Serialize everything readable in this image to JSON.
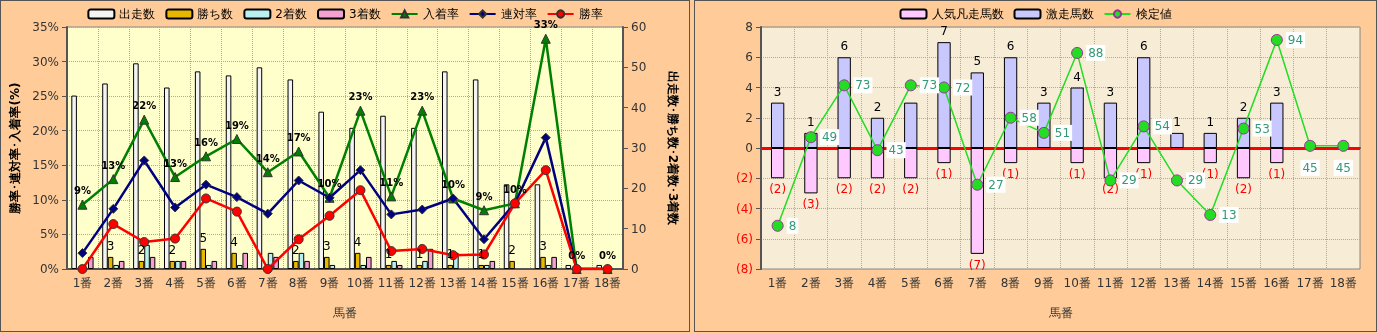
{
  "chart_data": [
    {
      "type": "bar",
      "xlabel": "馬番",
      "ylabel": "勝率･連対率･入着率(%)",
      "y2label": "出走数･勝ち数･2着数･3着数",
      "categories": [
        "1番",
        "2番",
        "3番",
        "4番",
        "5番",
        "6番",
        "7番",
        "8番",
        "9番",
        "10番",
        "11番",
        "12番",
        "13番",
        "14番",
        "15番",
        "16番",
        "17番",
        "18番"
      ],
      "ylim": [
        0,
        35
      ],
      "yticks": [
        {
          "value": 0,
          "label": "0%"
        },
        {
          "value": 5,
          "label": "5%"
        },
        {
          "value": 10,
          "label": "10%"
        },
        {
          "value": 15,
          "label": "15%"
        },
        {
          "value": 20,
          "label": "20%"
        },
        {
          "value": 25,
          "label": "25%"
        },
        {
          "value": 30,
          "label": "30%"
        },
        {
          "value": 35,
          "label": "35%"
        }
      ],
      "y2lim": [
        0,
        60
      ],
      "y2ticks": [
        0,
        10,
        20,
        30,
        40,
        50,
        60
      ],
      "grid": true,
      "legend": "top",
      "series": [
        {
          "name": "出走数",
          "axis": "y2",
          "color": "#f4f4f4",
          "values": [
            43,
            46,
            51,
            45,
            49,
            48,
            50,
            47,
            39,
            35,
            38,
            35,
            49,
            47,
            21,
            21,
            1,
            1
          ]
        },
        {
          "name": "勝ち数",
          "axis": "y2",
          "color": "#e8b800",
          "values": [
            0,
            3,
            2,
            2,
            5,
            4,
            0,
            2,
            3,
            4,
            1,
            1,
            1,
            1,
            2,
            3,
            0,
            0
          ],
          "value_labels": [
            null,
            "3",
            "2",
            "2",
            "5",
            "4",
            null,
            "2",
            "3",
            "4",
            "1",
            "1",
            "1",
            "1",
            "2",
            "3",
            null,
            null
          ]
        },
        {
          "name": "2着数",
          "axis": "y2",
          "color": "#b8f0f0",
          "values": [
            null,
            1,
            6,
            2,
            1,
            1,
            4,
            4,
            1,
            1,
            2,
            2,
            4,
            1,
            0,
            1,
            0,
            0
          ]
        },
        {
          "name": "3着数",
          "axis": "y2",
          "color": "#f4a0d0",
          "values": [
            3,
            2,
            3,
            2,
            2,
            4,
            3,
            2,
            0,
            3,
            1,
            5,
            0,
            2,
            0,
            3,
            0,
            0
          ]
        },
        {
          "name": "入着率",
          "type": "line",
          "color": "#008000",
          "marker": "triangle",
          "values": [
            9.3,
            13.0,
            21.6,
            13.3,
            16.3,
            18.8,
            14.0,
            17.0,
            10.3,
            22.9,
            10.5,
            22.9,
            10.2,
            8.5,
            9.5,
            33.3,
            0,
            0
          ],
          "value_labels": [
            "9%",
            "13%",
            "22%",
            "13%",
            "16%",
            "19%",
            "14%",
            "17%",
            "10%",
            "23%",
            "11%",
            "23%",
            "10%",
            "9%",
            "10%",
            "33%",
            "0%",
            "0%"
          ]
        },
        {
          "name": "連対率",
          "type": "line",
          "color": "#000080",
          "marker": "diamond",
          "values": [
            2.3,
            8.7,
            15.7,
            8.9,
            12.2,
            10.4,
            8.0,
            12.8,
            10.3,
            14.3,
            7.9,
            8.6,
            10.2,
            4.3,
            9.5,
            19.0,
            0,
            0
          ]
        },
        {
          "name": "勝率",
          "type": "line",
          "color": "#ff0000",
          "marker": "circle",
          "values": [
            0,
            6.5,
            3.9,
            4.4,
            10.2,
            8.3,
            0,
            4.3,
            7.7,
            11.4,
            2.6,
            2.9,
            2.0,
            2.1,
            9.5,
            14.3,
            0,
            0
          ]
        }
      ]
    },
    {
      "type": "bar",
      "xlabel": "馬番",
      "categories": [
        "1番",
        "2番",
        "3番",
        "4番",
        "5番",
        "6番",
        "7番",
        "8番",
        "9番",
        "10番",
        "11番",
        "12番",
        "13番",
        "14番",
        "15番",
        "16番",
        "17番",
        "18番"
      ],
      "ylim": [
        -8,
        8
      ],
      "yticks": [
        {
          "value": -8,
          "label": "(8)"
        },
        {
          "value": -6,
          "label": "(6)"
        },
        {
          "value": -4,
          "label": "(4)"
        },
        {
          "value": -2,
          "label": "(2)"
        },
        0,
        2,
        4,
        6,
        8
      ],
      "y2lim": [
        -12,
        100
      ],
      "grid": true,
      "legend": "top",
      "stacked": true,
      "ref_lines": [
        {
          "axis": "y",
          "value": 0,
          "color": "#ff0000"
        }
      ],
      "series": [
        {
          "name": "人気凡走馬数",
          "color": "#ffc8ff",
          "values": [
            -2,
            -3,
            -2,
            -2,
            -2,
            -1,
            -7,
            -1,
            0,
            -1,
            -2,
            -1,
            0,
            -1,
            -2,
            -1,
            0,
            0
          ],
          "value_labels": [
            "(2)",
            "(3)",
            "(2)",
            "(2)",
            "(2)",
            "(1)",
            "(7)",
            "(1)",
            null,
            "(1)",
            "(2)",
            "(1)",
            null,
            "(1)",
            "(2)",
            "(1)",
            null,
            null
          ]
        },
        {
          "name": "激走馬数",
          "color": "#c8c8ff",
          "values": [
            3,
            1,
            6,
            2,
            3,
            7,
            5,
            6,
            3,
            4,
            3,
            6,
            1,
            1,
            2,
            3,
            0,
            0
          ],
          "value_labels": [
            "3",
            "1",
            "6",
            "2",
            null,
            "7",
            "5",
            "6",
            "3",
            "4",
            "3",
            "6",
            "1",
            "1",
            "2",
            "3",
            null,
            null
          ]
        },
        {
          "name": "検定値",
          "type": "line",
          "axis": "y2",
          "color": "#22dd22",
          "marker": "circle",
          "data_labels": true,
          "values": [
            8,
            49,
            73,
            43,
            73,
            72,
            27,
            58,
            51,
            88,
            29,
            54,
            29,
            13,
            53,
            94,
            45,
            45
          ]
        }
      ]
    }
  ]
}
